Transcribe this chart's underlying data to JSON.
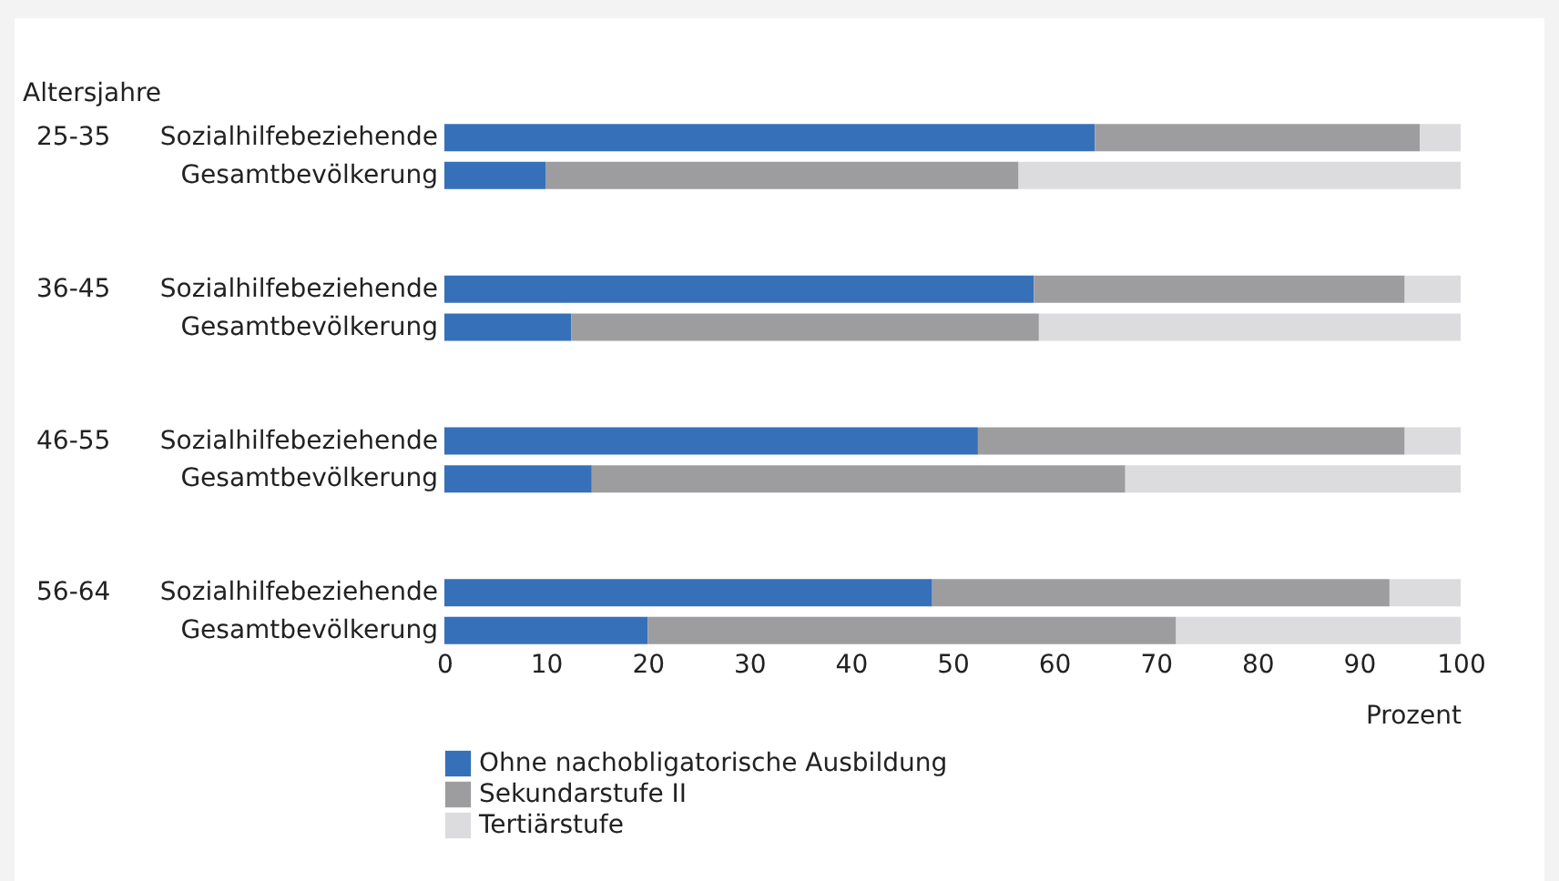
{
  "chart_data": {
    "type": "bar",
    "orientation": "horizontal",
    "stacked": true,
    "ylabel": "Altersjahre",
    "xlabel": "Prozent",
    "categories": [
      "Sozialhilfebeziehende",
      "Gesamtbevölkerung",
      "Sozialhilfebeziehende",
      "Gesamtbevölkerung",
      "Sozialhilfebeziehende",
      "Gesamtbevölkerung",
      "Sozialhilfebeziehende",
      "Gesamtbevölkerung"
    ],
    "annotations": [
      "25-35",
      "36-45",
      "46-55",
      "56-64"
    ],
    "series": [
      {
        "name": "Ohne nachobligatorische Ausbildung",
        "color": "#3670b8",
        "values": [
          64,
          10,
          58,
          12.5,
          52.5,
          14.5,
          48,
          20
        ]
      },
      {
        "name": "Sekundarstufe II",
        "color": "#9d9d9f",
        "values": [
          32,
          46.5,
          36.5,
          46,
          42,
          52.5,
          45,
          52
        ]
      },
      {
        "name": "Tertiärstufe",
        "color": "#dcdcde",
        "values": [
          4,
          43.5,
          5.5,
          41.5,
          5.5,
          33,
          7,
          28
        ]
      }
    ],
    "xlim": [
      0,
      100
    ],
    "xticks": [
      0,
      10,
      20,
      30,
      40,
      50,
      60,
      70,
      80,
      90,
      100
    ],
    "legend": "bottom left"
  }
}
